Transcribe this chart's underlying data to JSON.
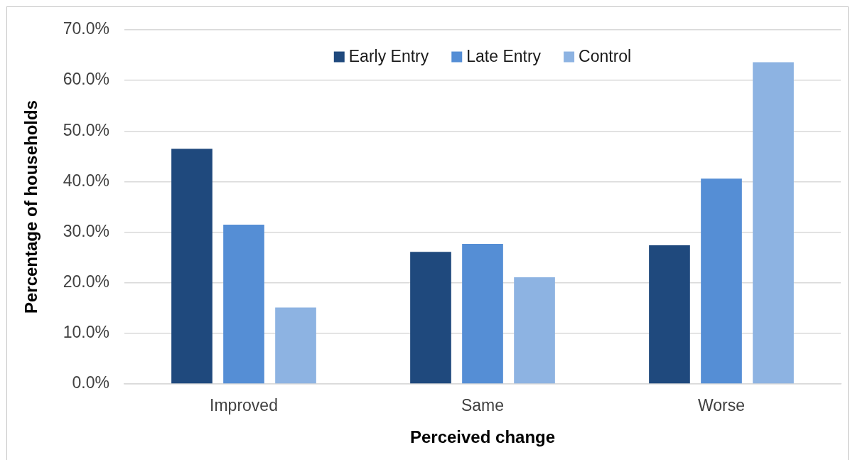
{
  "chart_data": {
    "type": "bar",
    "xlabel": "Perceived change",
    "ylabel": "Percentage of households",
    "categories": [
      "Improved",
      "Same",
      "Worse"
    ],
    "series": [
      {
        "name": "Early Entry",
        "color": "#1f497d",
        "values": [
          46.5,
          26.1,
          27.4
        ]
      },
      {
        "name": "Late Entry",
        "color": "#558ed5",
        "values": [
          31.5,
          27.7,
          40.6
        ]
      },
      {
        "name": "Control",
        "color": "#8db3e2",
        "values": [
          15.1,
          21.1,
          63.6
        ]
      }
    ],
    "ylim": [
      0,
      70
    ],
    "yticks": [
      {
        "value": 0,
        "label": "0.0%"
      },
      {
        "value": 10,
        "label": "10.0%"
      },
      {
        "value": 20,
        "label": "20.0%"
      },
      {
        "value": 30,
        "label": "30.0%"
      },
      {
        "value": 40,
        "label": "40.0%"
      },
      {
        "value": 50,
        "label": "50.0%"
      },
      {
        "value": 60,
        "label": "60.0%"
      },
      {
        "value": 70,
        "label": "70.0%"
      }
    ],
    "grid": "y",
    "legend": "top"
  }
}
